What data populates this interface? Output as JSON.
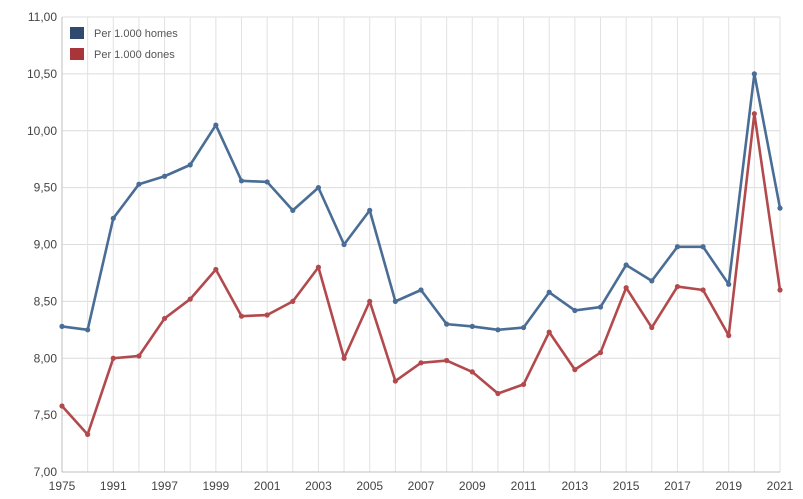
{
  "chart_data": {
    "type": "line",
    "categories": [
      "1975",
      "",
      "1991",
      "",
      "1997",
      "",
      "1999",
      "",
      "2001",
      "",
      "2003",
      "",
      "2005",
      "",
      "2007",
      "",
      "2009",
      "",
      "2011",
      "",
      "2013",
      "",
      "2015",
      "",
      "2017",
      "",
      "2019",
      "",
      "2021"
    ],
    "ylim": [
      7.0,
      11.0
    ],
    "yticks": [
      "7,00",
      "7,50",
      "8,00",
      "8,50",
      "9,00",
      "9,50",
      "10,00",
      "10,50",
      "11,00"
    ],
    "ytick_values": [
      7.0,
      7.5,
      8.0,
      8.5,
      9.0,
      9.5,
      10.0,
      10.5,
      11.0
    ],
    "grid": true,
    "legend_position": "top-left",
    "series": [
      {
        "name": "Per 1.000 homes",
        "color": "#4a6d96",
        "values": [
          8.28,
          8.25,
          9.23,
          9.53,
          9.6,
          9.7,
          10.05,
          9.56,
          9.55,
          9.3,
          9.5,
          9.0,
          9.3,
          8.5,
          8.6,
          8.3,
          8.28,
          8.25,
          8.27,
          8.58,
          8.42,
          8.45,
          8.82,
          8.68,
          8.98,
          8.98,
          8.65,
          10.5,
          9.32
        ]
      },
      {
        "name": "Per 1.000 dones",
        "color": "#b24a4d",
        "values": [
          7.58,
          7.33,
          8.0,
          8.02,
          8.35,
          8.52,
          8.78,
          8.37,
          8.38,
          8.5,
          8.8,
          8.0,
          8.5,
          7.8,
          7.96,
          7.98,
          7.88,
          7.69,
          7.77,
          8.23,
          7.9,
          8.05,
          8.62,
          8.27,
          8.63,
          8.6,
          8.2,
          10.15,
          8.6
        ]
      }
    ]
  }
}
